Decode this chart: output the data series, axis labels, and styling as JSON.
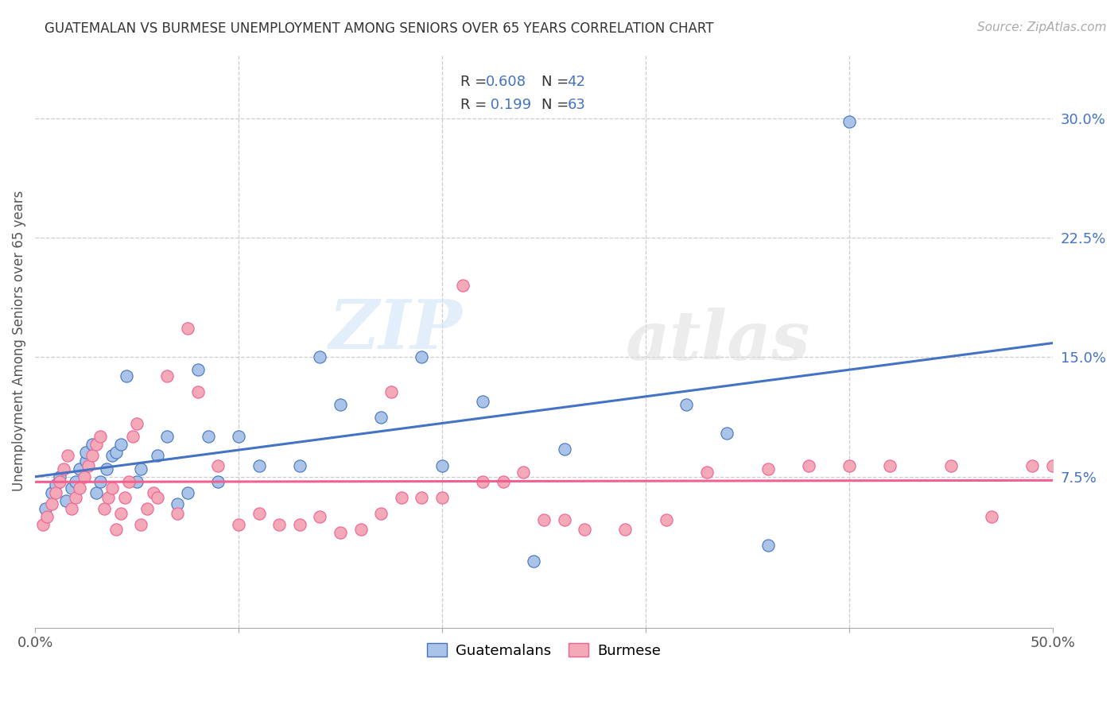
{
  "title": "GUATEMALAN VS BURMESE UNEMPLOYMENT AMONG SENIORS OVER 65 YEARS CORRELATION CHART",
  "source": "Source: ZipAtlas.com",
  "ylabel": "Unemployment Among Seniors over 65 years",
  "xlim": [
    0.0,
    0.5
  ],
  "ylim": [
    -0.02,
    0.34
  ],
  "xticks": [
    0.0,
    0.1,
    0.2,
    0.3,
    0.4,
    0.5
  ],
  "xticklabels": [
    "0.0%",
    "",
    "",
    "",
    "",
    "50.0%"
  ],
  "yticks_right": [
    0.075,
    0.15,
    0.225,
    0.3
  ],
  "yticklabels_right": [
    "7.5%",
    "15.0%",
    "22.5%",
    "30.0%"
  ],
  "background_color": "#ffffff",
  "grid_color": "#cccccc",
  "guatemalan_color": "#aac4e8",
  "burmese_color": "#f4a9b8",
  "line_guatemalan_color": "#4472c4",
  "line_burmese_color": "#f06090",
  "legend_r_guatemalan": "0.608",
  "legend_n_guatemalan": "42",
  "legend_r_burmese": "0.199",
  "legend_n_burmese": "63",
  "watermark": "ZIPatlas",
  "guatemalan_x": [
    0.005,
    0.008,
    0.01,
    0.012,
    0.015,
    0.018,
    0.02,
    0.022,
    0.025,
    0.025,
    0.028,
    0.03,
    0.032,
    0.035,
    0.038,
    0.04,
    0.042,
    0.045,
    0.05,
    0.052,
    0.06,
    0.065,
    0.07,
    0.075,
    0.08,
    0.085,
    0.09,
    0.1,
    0.11,
    0.13,
    0.14,
    0.15,
    0.17,
    0.19,
    0.2,
    0.22,
    0.245,
    0.26,
    0.32,
    0.34,
    0.36,
    0.4
  ],
  "guatemalan_y": [
    0.055,
    0.065,
    0.07,
    0.075,
    0.06,
    0.068,
    0.072,
    0.08,
    0.085,
    0.09,
    0.095,
    0.065,
    0.072,
    0.08,
    0.088,
    0.09,
    0.095,
    0.138,
    0.072,
    0.08,
    0.088,
    0.1,
    0.058,
    0.065,
    0.142,
    0.1,
    0.072,
    0.1,
    0.082,
    0.082,
    0.15,
    0.12,
    0.112,
    0.15,
    0.082,
    0.122,
    0.022,
    0.092,
    0.12,
    0.102,
    0.032,
    0.298
  ],
  "burmese_x": [
    0.004,
    0.006,
    0.008,
    0.01,
    0.012,
    0.014,
    0.016,
    0.018,
    0.02,
    0.022,
    0.024,
    0.026,
    0.028,
    0.03,
    0.032,
    0.034,
    0.036,
    0.038,
    0.04,
    0.042,
    0.044,
    0.046,
    0.048,
    0.05,
    0.052,
    0.055,
    0.058,
    0.06,
    0.065,
    0.07,
    0.075,
    0.08,
    0.09,
    0.1,
    0.11,
    0.12,
    0.13,
    0.14,
    0.15,
    0.16,
    0.17,
    0.175,
    0.18,
    0.19,
    0.2,
    0.21,
    0.22,
    0.23,
    0.24,
    0.25,
    0.26,
    0.27,
    0.29,
    0.31,
    0.33,
    0.36,
    0.38,
    0.4,
    0.42,
    0.45,
    0.47,
    0.49,
    0.5
  ],
  "burmese_y": [
    0.045,
    0.05,
    0.058,
    0.065,
    0.072,
    0.08,
    0.088,
    0.055,
    0.062,
    0.068,
    0.075,
    0.082,
    0.088,
    0.095,
    0.1,
    0.055,
    0.062,
    0.068,
    0.042,
    0.052,
    0.062,
    0.072,
    0.1,
    0.108,
    0.045,
    0.055,
    0.065,
    0.062,
    0.138,
    0.052,
    0.168,
    0.128,
    0.082,
    0.045,
    0.052,
    0.045,
    0.045,
    0.05,
    0.04,
    0.042,
    0.052,
    0.128,
    0.062,
    0.062,
    0.062,
    0.195,
    0.072,
    0.072,
    0.078,
    0.048,
    0.048,
    0.042,
    0.042,
    0.048,
    0.078,
    0.08,
    0.082,
    0.082,
    0.082,
    0.082,
    0.05,
    0.082,
    0.082
  ]
}
